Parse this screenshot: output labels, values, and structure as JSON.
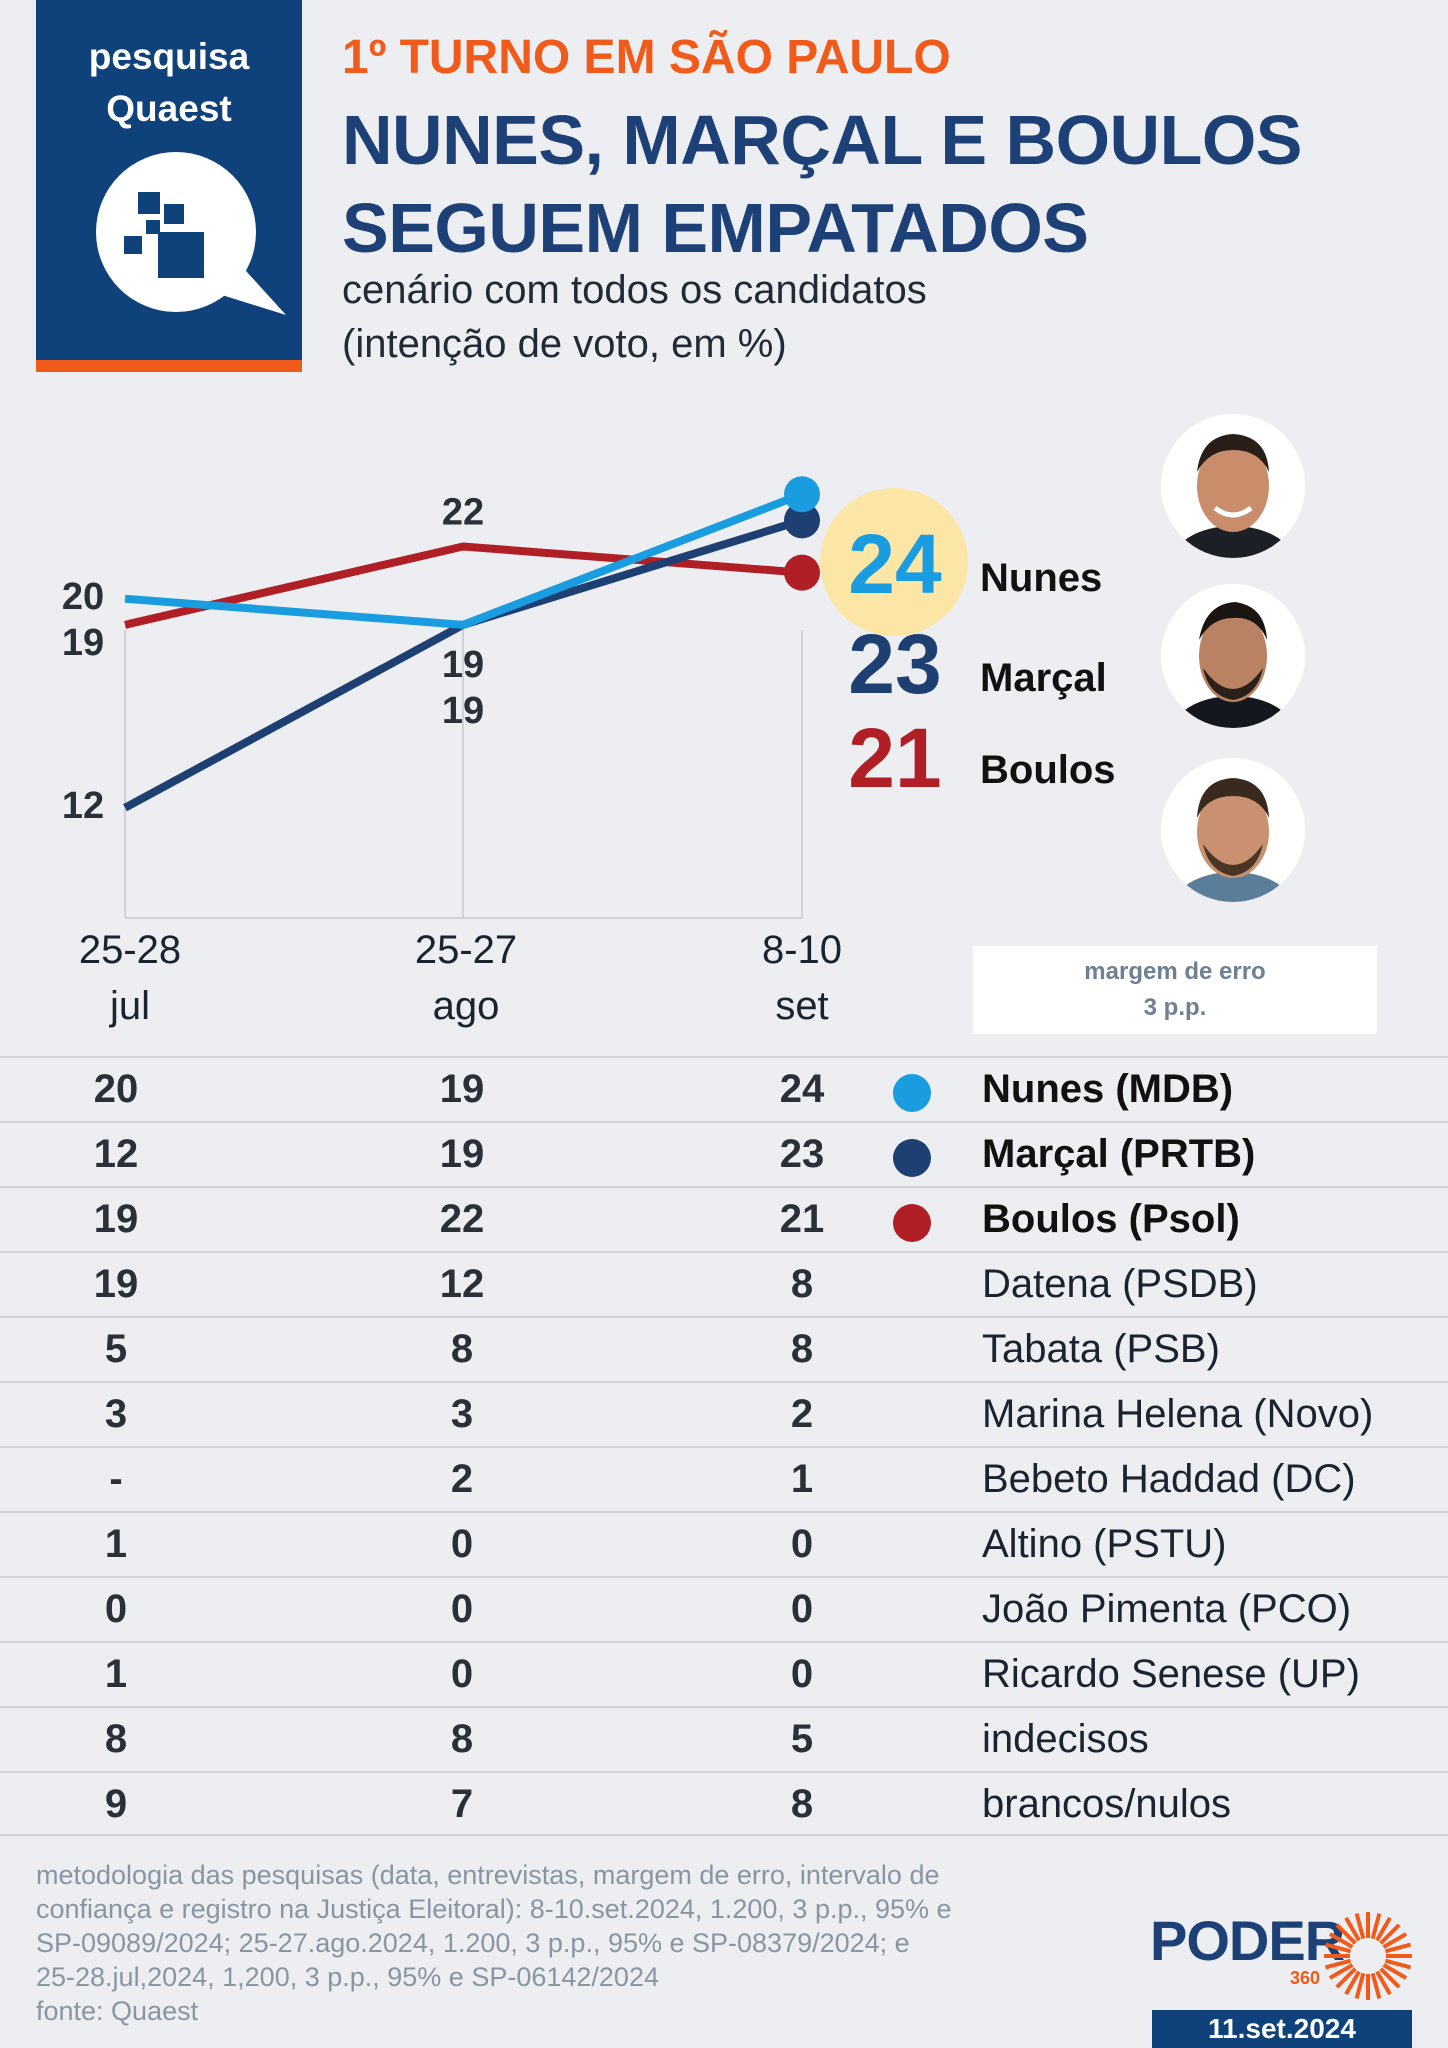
{
  "logo": {
    "line1": "pesquisa",
    "line2": "Quaest"
  },
  "header": {
    "eyebrow": "1º TURNO EM SÃO PAULO",
    "headline_line1": "NUNES, MARÇAL E BOULOS",
    "headline_line2": "SEGUEM EMPATADOS",
    "subtitle_line1": "cenário com todos os candidatos",
    "subtitle_line2": "(intenção de voto, em %)"
  },
  "chart_data": {
    "type": "line",
    "categories": [
      "25-28 jul",
      "25-27 ago",
      "8-10 set"
    ],
    "x_labels": [
      {
        "line1": "25-28",
        "line2": "jul"
      },
      {
        "line1": "25-27",
        "line2": "ago"
      },
      {
        "line1": "8-10",
        "line2": "set"
      }
    ],
    "series": [
      {
        "name": "Nunes",
        "color": "#1a9ce0",
        "values": [
          20,
          19,
          24
        ]
      },
      {
        "name": "Marçal",
        "color": "#1d3f72",
        "values": [
          12,
          19,
          23
        ]
      },
      {
        "name": "Boulos",
        "color": "#b01f26",
        "values": [
          19,
          22,
          21
        ]
      }
    ],
    "data_labels": [
      {
        "text": "20",
        "series": 0,
        "index": 0
      },
      {
        "text": "19",
        "series": 2,
        "index": 0
      },
      {
        "text": "12",
        "series": 1,
        "index": 0
      },
      {
        "text": "22",
        "series": 2,
        "index": 1
      },
      {
        "text": "19",
        "series": 0,
        "index": 1
      },
      {
        "text": "19",
        "series": 1,
        "index": 1
      }
    ],
    "ylim": [
      10,
      26
    ],
    "grid": "vertical lines at each survey"
  },
  "highlights": [
    {
      "value": "24",
      "name": "Nunes",
      "color": "#1a9ce0",
      "halo": "#fbe6a6"
    },
    {
      "value": "23",
      "name": "Marçal",
      "color": "#1d3f72"
    },
    {
      "value": "21",
      "name": "Boulos",
      "color": "#b01f26"
    }
  ],
  "margin_box": {
    "line1": "margem de erro",
    "line2": "3 p.p."
  },
  "table": {
    "rows": [
      {
        "jul": "20",
        "ago": "19",
        "set": "24",
        "name": "Nunes (MDB)",
        "dot": "#1a9ce0"
      },
      {
        "jul": "12",
        "ago": "19",
        "set": "23",
        "name": "Marçal (PRTB)",
        "dot": "#1d3f72"
      },
      {
        "jul": "19",
        "ago": "22",
        "set": "21",
        "name": "Boulos (Psol)",
        "dot": "#b01f26"
      },
      {
        "jul": "19",
        "ago": "12",
        "set": "8",
        "name": "Datena (PSDB)"
      },
      {
        "jul": "5",
        "ago": "8",
        "set": "8",
        "name": "Tabata (PSB)"
      },
      {
        "jul": "3",
        "ago": "3",
        "set": "2",
        "name": "Marina Helena (Novo)"
      },
      {
        "jul": "-",
        "ago": "2",
        "set": "1",
        "name": "Bebeto Haddad (DC)"
      },
      {
        "jul": "1",
        "ago": "0",
        "set": "0",
        "name": "Altino (PSTU)"
      },
      {
        "jul": "0",
        "ago": "0",
        "set": "0",
        "name": "João Pimenta (PCO)"
      },
      {
        "jul": "1",
        "ago": "0",
        "set": "0",
        "name": "Ricardo Senese (UP)"
      },
      {
        "jul": "8",
        "ago": "8",
        "set": "5",
        "name": "indecisos"
      },
      {
        "jul": "9",
        "ago": "7",
        "set": "8",
        "name": "brancos/nulos"
      }
    ]
  },
  "footer": {
    "methodology": [
      "metodologia das pesquisas (data, entrevistas, margem de erro, intervalo de",
      "confiança e registro na Justiça Eleitoral): 8-10.set.2024, 1.200, 3 p.p., 95% e",
      "SP-09089/2024; 25-27.ago.2024, 1.200, 3 p.p., 95% e SP-08379/2024; e",
      "25-28.jul,2024, 1,200, 3 p.p., 95% e SP-06142/2024",
      "fonte: Quaest"
    ],
    "brand": "PODER",
    "brand_suffix": "360",
    "date": "11.set.2024"
  },
  "colors": {
    "brand_blue": "#0f427b",
    "accent_orange": "#f05a1a"
  }
}
